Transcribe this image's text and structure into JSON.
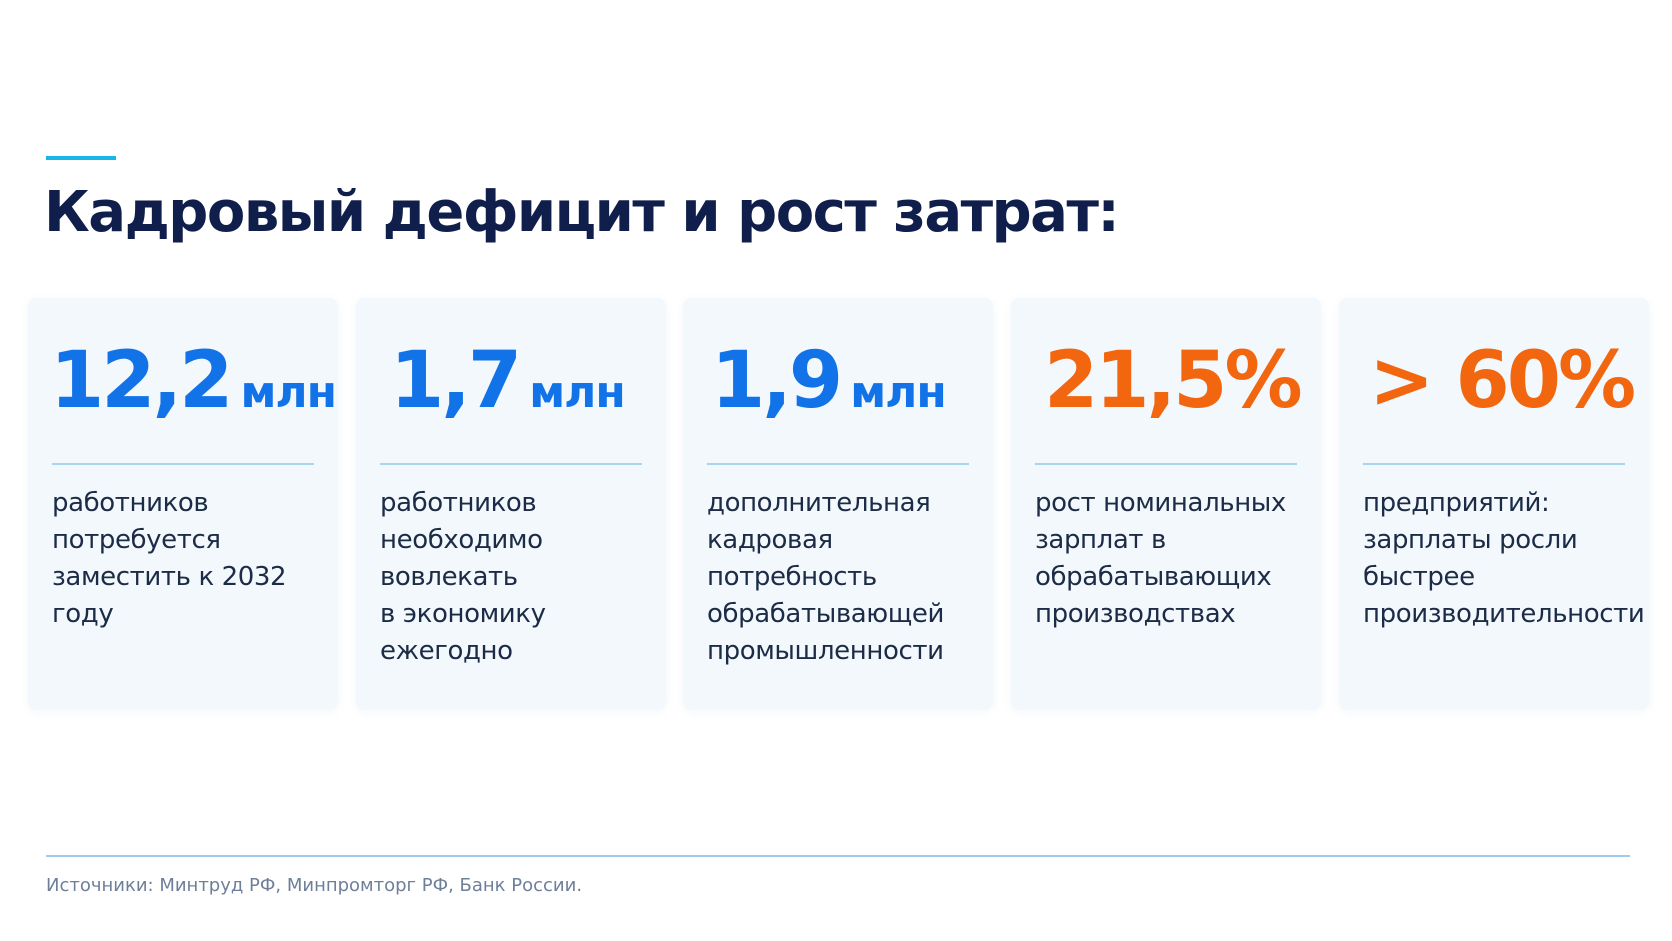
{
  "title": "Кадровый дефицит и рост затрат:",
  "colors": {
    "title": "#0f1e4a",
    "accent_bar": "#18b6e6",
    "blue": "#1273e8",
    "orange": "#f2660f",
    "card_background": "#f2f8fc",
    "divider": "#a9d4ee",
    "source_text": "#6e7f9a"
  },
  "cards": [
    {
      "value": "12,2",
      "unit": "млн",
      "color": "blue",
      "description": "работников\nпотребуется\nзаместить к 2032\nгоду"
    },
    {
      "value": "1,7",
      "unit": "млн",
      "color": "blue",
      "description": "работников\nнеобходимо\nвовлекать\nв экономику\nежегодно"
    },
    {
      "value": "1,9",
      "unit": "млн",
      "color": "blue",
      "description": "дополнительная\nкадровая\nпотребность\nобрабатывающей\nпромышленности"
    },
    {
      "value": "21,5%",
      "unit": "",
      "color": "orange",
      "description": "рост номинальных\nзарплат в\nобрабатывающих\nпроизводствах"
    },
    {
      "value": "> 60%",
      "unit": "",
      "color": "orange",
      "description": "предприятий:\nзарплаты росли\nбыстрее\nпроизводительности"
    }
  ],
  "source": "Источники: Минтруд РФ, Минпромторг РФ, Банк России."
}
